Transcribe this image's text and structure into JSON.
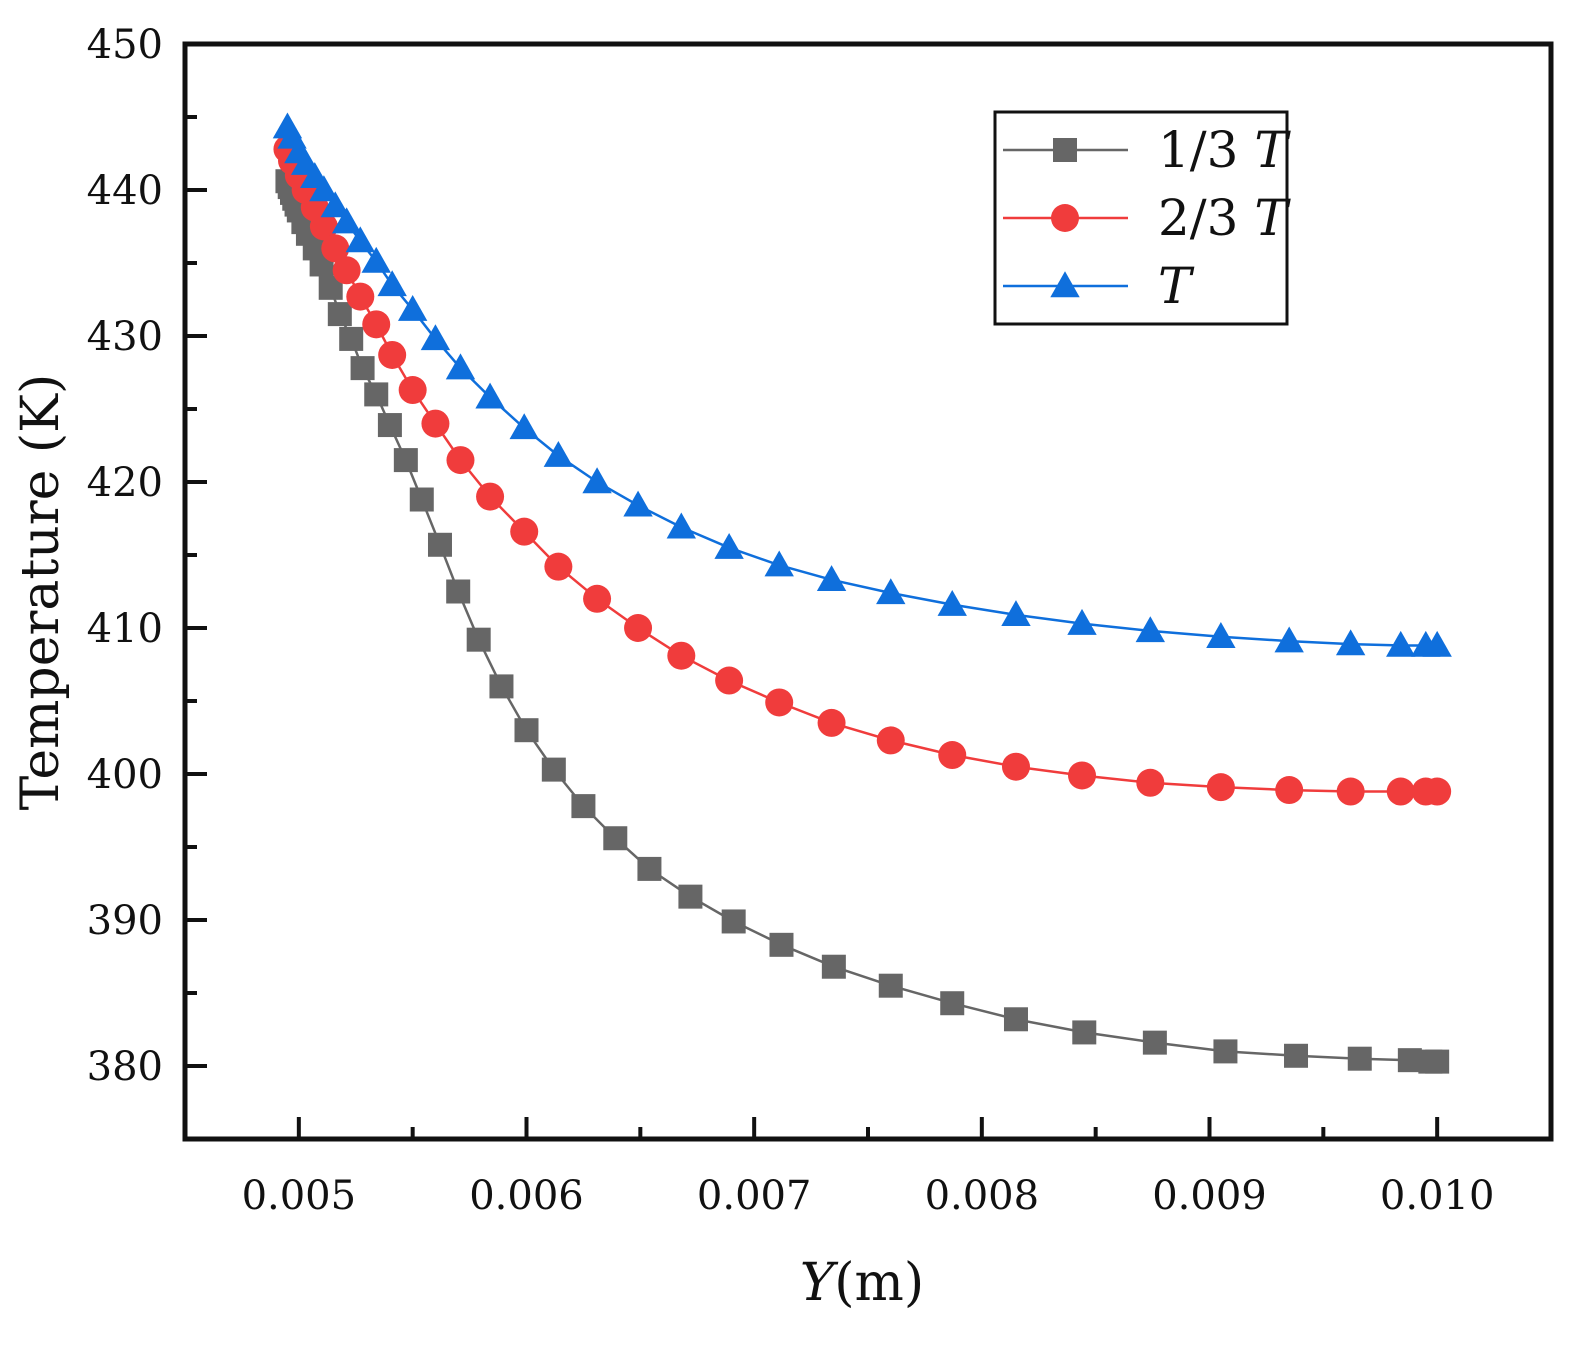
{
  "chart_data": {
    "type": "line",
    "title": "",
    "xlabel": "Y(m)",
    "xlabel_var": "Y",
    "xlabel_unit": "(m)",
    "ylabel": "Temperature (K)",
    "xlim": [
      0.0045,
      0.0105
    ],
    "ylim": [
      375,
      450
    ],
    "xticks": [
      0.005,
      0.006,
      0.007,
      0.008,
      0.009,
      0.01
    ],
    "xtick_labels": [
      "0.005",
      "0.006",
      "0.007",
      "0.008",
      "0.009",
      "0.010"
    ],
    "yticks": [
      380,
      390,
      400,
      410,
      420,
      430,
      440,
      450
    ],
    "ytick_labels": [
      "380",
      "390",
      "400",
      "410",
      "420",
      "430",
      "440",
      "450"
    ],
    "grid": false,
    "legend_position": "top-right",
    "series": [
      {
        "name": "1/3 T",
        "label_prefix": "1/3 ",
        "label_var": "T",
        "marker": "square",
        "color": "#666666",
        "x": [
          0.00495,
          0.00496,
          0.00497,
          0.00498,
          0.00499,
          0.005,
          0.00502,
          0.00504,
          0.00507,
          0.0051,
          0.00514,
          0.00518,
          0.00523,
          0.00528,
          0.00534,
          0.0054,
          0.00547,
          0.00554,
          0.00562,
          0.0057,
          0.00579,
          0.00589,
          0.006,
          0.00612,
          0.00625,
          0.00639,
          0.00654,
          0.00672,
          0.00691,
          0.00712,
          0.00735,
          0.0076,
          0.00787,
          0.00815,
          0.00845,
          0.00876,
          0.00907,
          0.00938,
          0.00966,
          0.00988,
          0.00997,
          0.01
        ],
        "y": [
          440.6,
          440.2,
          439.8,
          439.4,
          439.0,
          438.6,
          437.8,
          437.0,
          436.0,
          434.9,
          433.3,
          431.5,
          429.8,
          427.8,
          426.0,
          423.9,
          421.5,
          418.8,
          415.7,
          412.5,
          409.2,
          406.0,
          403.0,
          400.3,
          397.8,
          395.6,
          393.5,
          391.6,
          389.9,
          388.3,
          386.8,
          385.5,
          384.3,
          383.2,
          382.3,
          381.6,
          381.0,
          380.7,
          380.5,
          380.4,
          380.3,
          380.3
        ]
      },
      {
        "name": "2/3 T",
        "label_prefix": "2/3 ",
        "label_var": "T",
        "marker": "circle",
        "color": "#f03c3c",
        "x": [
          0.00495,
          0.00497,
          0.005,
          0.00503,
          0.00507,
          0.00511,
          0.00516,
          0.00521,
          0.00527,
          0.00534,
          0.00541,
          0.0055,
          0.0056,
          0.00571,
          0.00584,
          0.00599,
          0.00614,
          0.00631,
          0.00649,
          0.00668,
          0.00689,
          0.00711,
          0.00734,
          0.0076,
          0.00787,
          0.00815,
          0.00844,
          0.00874,
          0.00905,
          0.00935,
          0.00962,
          0.00984,
          0.00995,
          0.01
        ],
        "y": [
          442.8,
          442.0,
          441.0,
          440.0,
          438.8,
          437.5,
          436.0,
          434.5,
          432.7,
          430.8,
          428.7,
          426.3,
          424.0,
          421.5,
          419.0,
          416.6,
          414.2,
          412.0,
          410.0,
          408.1,
          406.4,
          404.9,
          403.5,
          402.3,
          401.3,
          400.5,
          399.9,
          399.4,
          399.1,
          398.9,
          398.8,
          398.8,
          398.8,
          398.8
        ]
      },
      {
        "name": "T",
        "label_prefix": "",
        "label_var": "T",
        "marker": "triangle",
        "color": "#0f6fdc",
        "x": [
          0.00495,
          0.00497,
          0.005,
          0.00503,
          0.00507,
          0.00511,
          0.00516,
          0.00521,
          0.00527,
          0.00534,
          0.00541,
          0.0055,
          0.0056,
          0.00571,
          0.00584,
          0.00599,
          0.00614,
          0.00631,
          0.00649,
          0.00668,
          0.00689,
          0.00711,
          0.00734,
          0.0076,
          0.00787,
          0.00815,
          0.00844,
          0.00874,
          0.00905,
          0.00935,
          0.00962,
          0.00984,
          0.00995,
          0.01
        ],
        "y": [
          444.3,
          443.6,
          442.6,
          441.8,
          440.9,
          440.0,
          438.9,
          437.8,
          436.5,
          435.1,
          433.5,
          431.8,
          429.8,
          427.8,
          425.8,
          423.7,
          421.8,
          420.0,
          418.4,
          416.9,
          415.5,
          414.3,
          413.3,
          412.4,
          411.6,
          410.9,
          410.3,
          409.8,
          409.4,
          409.1,
          408.9,
          408.8,
          408.8,
          408.8
        ]
      }
    ]
  }
}
